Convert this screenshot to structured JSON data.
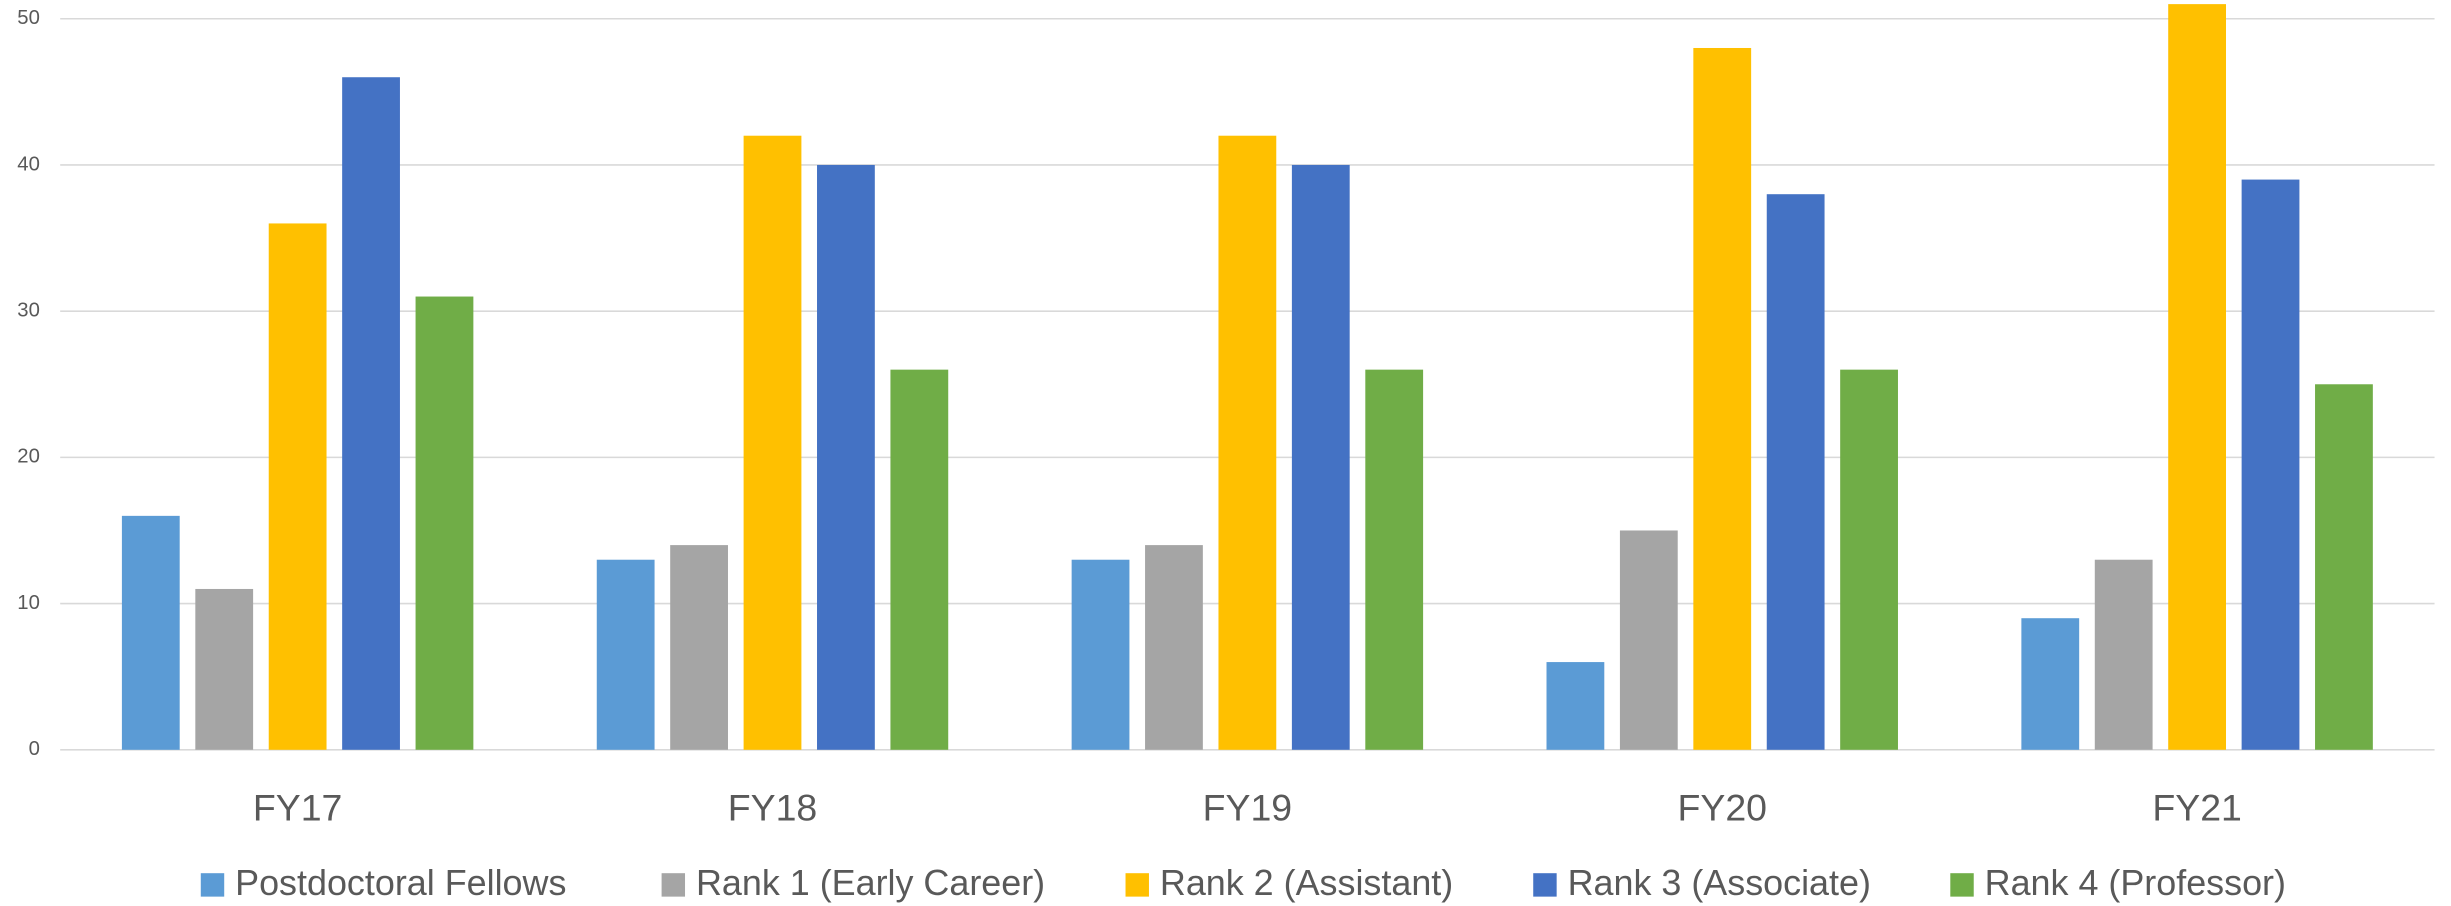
{
  "chart_data": {
    "type": "bar",
    "categories": [
      "FY17",
      "FY18",
      "FY19",
      "FY20",
      "FY21"
    ],
    "series": [
      {
        "name": "Postdoctoral Fellows",
        "color": "#5b9bd5",
        "values": [
          16,
          13,
          13,
          6,
          9
        ]
      },
      {
        "name": "Rank 1 (Early Career)",
        "color": "#a5a5a5",
        "values": [
          11,
          14,
          14,
          15,
          13
        ]
      },
      {
        "name": "Rank 2 (Assistant)",
        "color": "#ffc000",
        "values": [
          36,
          42,
          42,
          48,
          51
        ]
      },
      {
        "name": "Rank 3 (Associate)",
        "color": "#4472c4",
        "values": [
          46,
          40,
          40,
          38,
          39
        ]
      },
      {
        "name": "Rank 4 (Professor)",
        "color": "#70ad47",
        "values": [
          31,
          26,
          26,
          26,
          25
        ]
      }
    ],
    "ylim": [
      0,
      50
    ],
    "yticks": [
      0,
      10,
      20,
      30,
      40,
      50
    ],
    "grid": true,
    "legend": "bottom"
  }
}
